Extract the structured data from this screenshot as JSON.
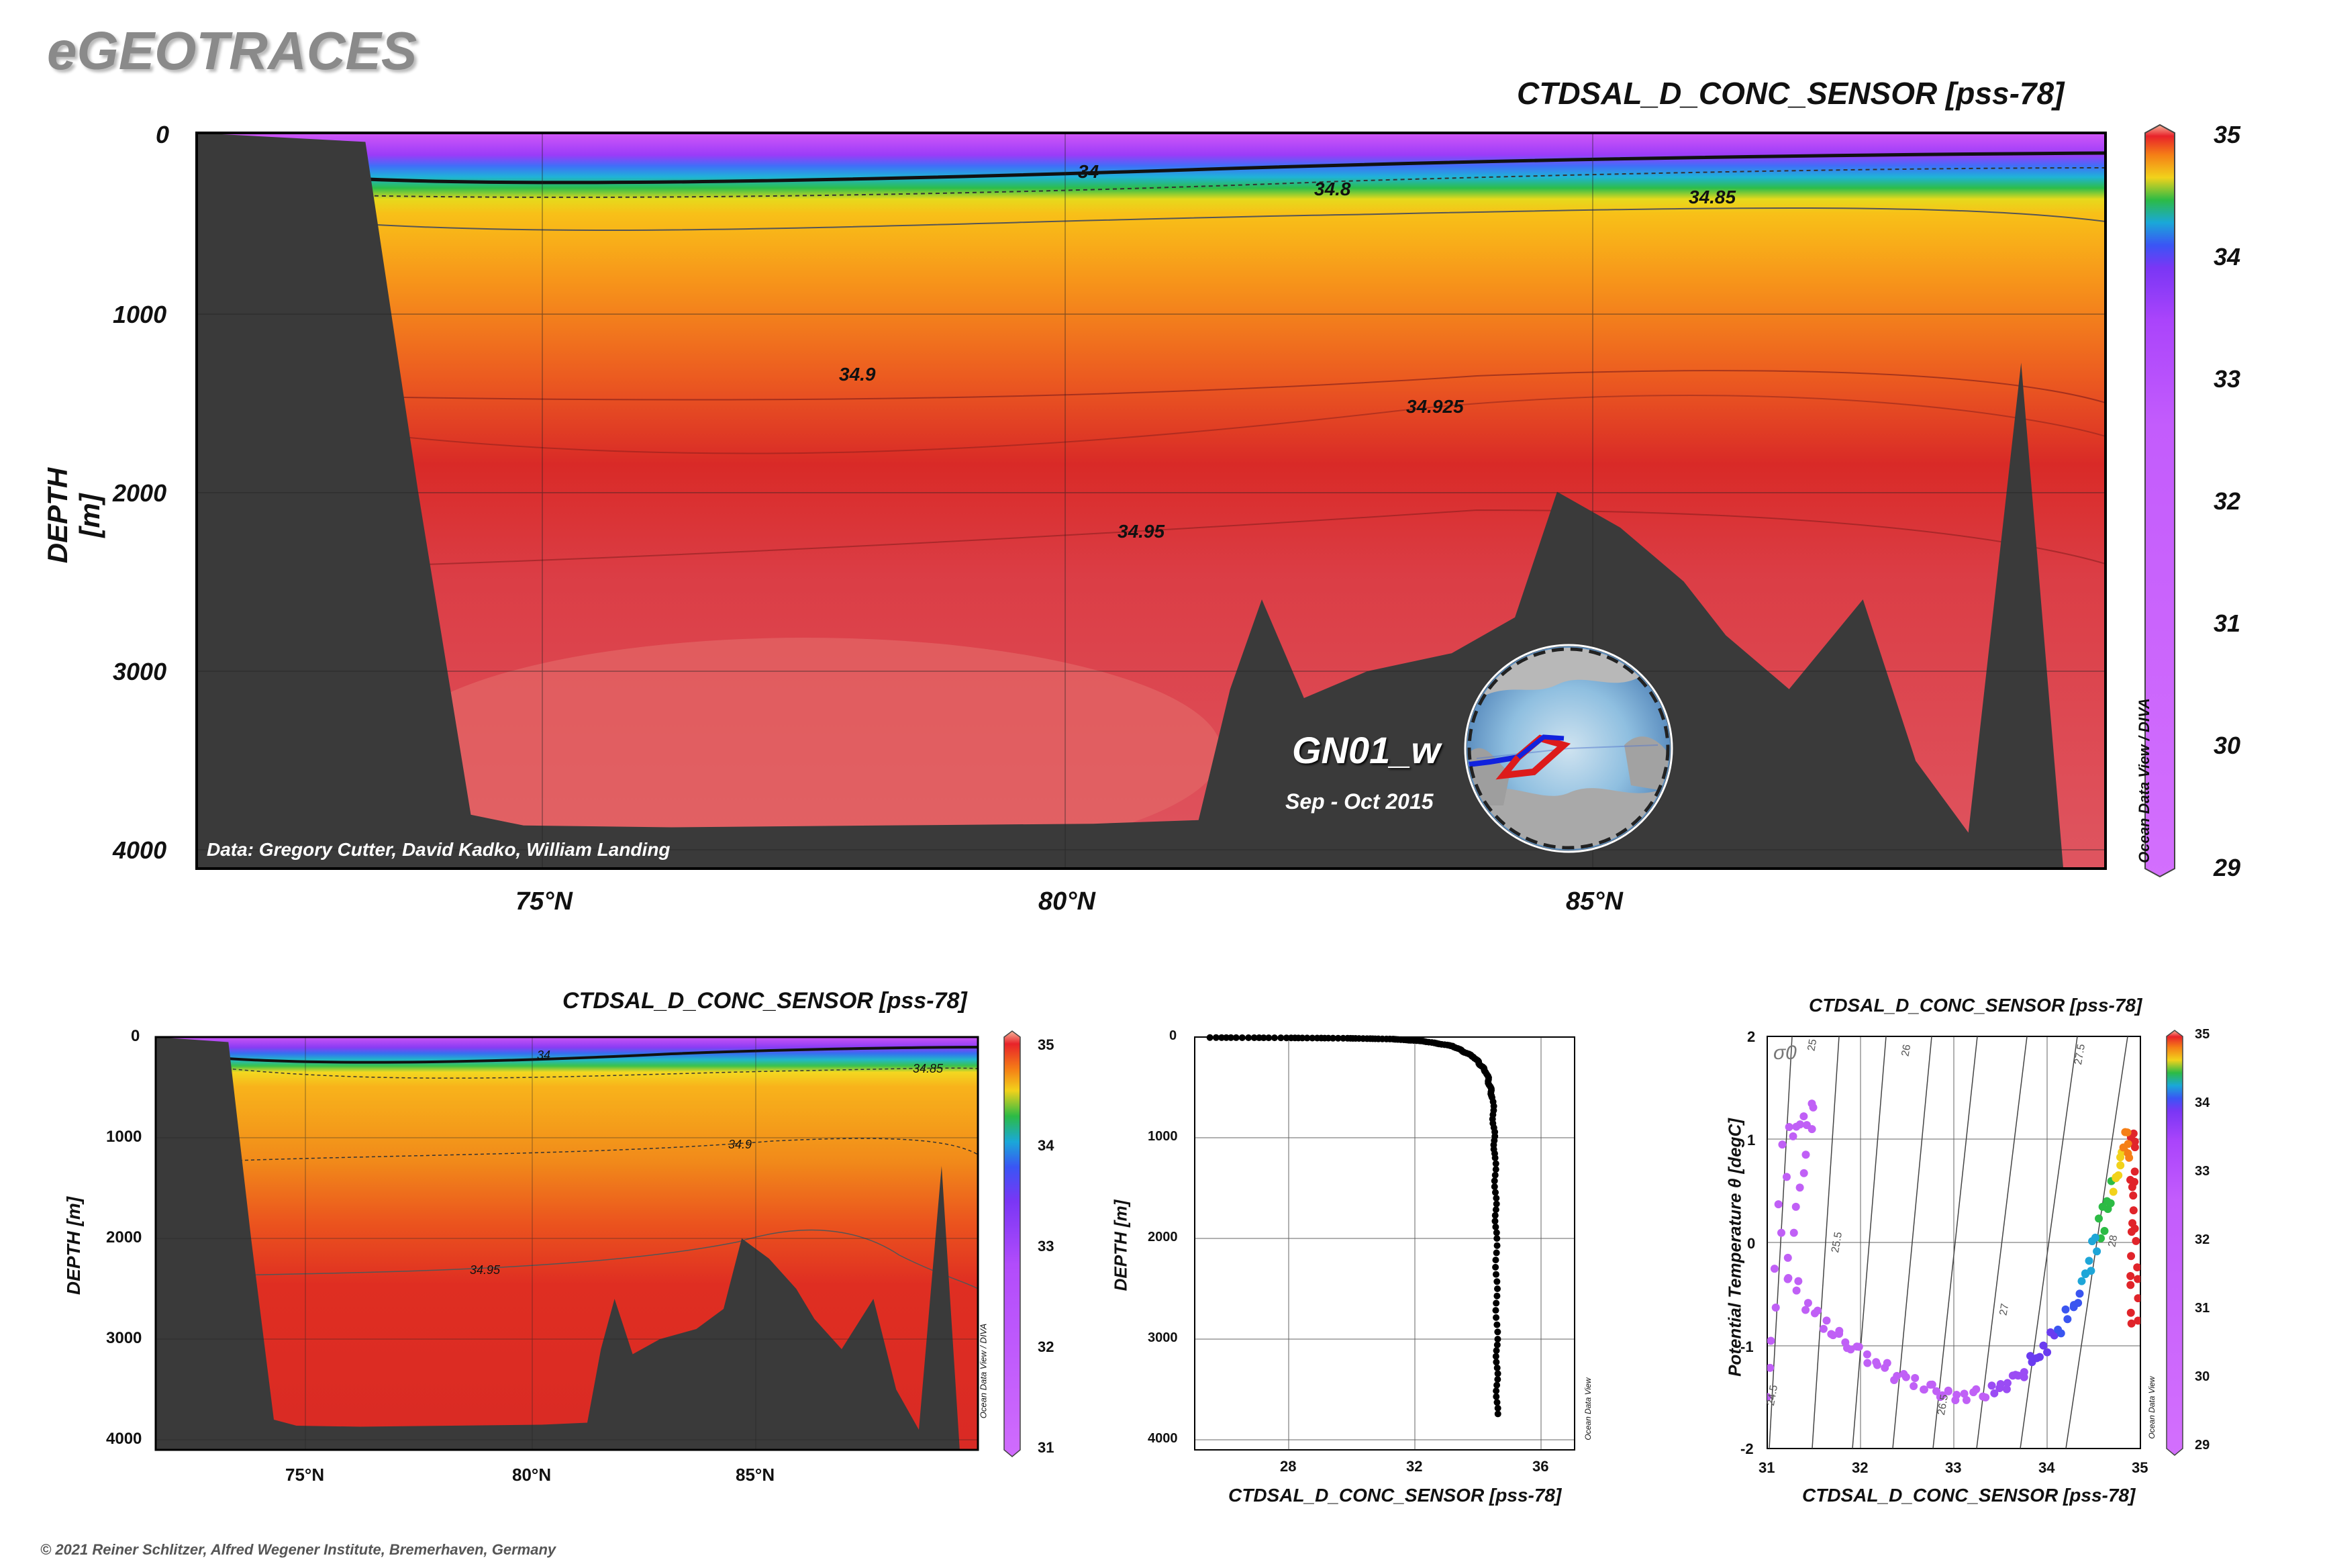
{
  "header": {
    "app_title": "eGEOTRACES"
  },
  "footer": {
    "copyright": "© 2021 Reiner Schlitzer, Alfred Wegener Institute, Bremerhaven, Germany"
  },
  "colors": {
    "terrain": "#3a3a3a",
    "purple_low": "#cc66ff",
    "violet": "#9933ff",
    "blue": "#3366ff",
    "cyan": "#1ab0d8",
    "green": "#22bb44",
    "yellow": "#f2d21b",
    "orange": "#f58a18",
    "red": "#d8242a",
    "salmon": "#e05a5a"
  },
  "main_section": {
    "title": "CTDSAL_D_CONC_SENSOR [pss-78]",
    "ylabel": "DEPTH [m]",
    "yticks": [
      "0",
      "1000",
      "2000",
      "3000",
      "4000"
    ],
    "xticks": [
      "75°N",
      "80°N",
      "85°N"
    ],
    "contour_labels": [
      "34",
      "34.8",
      "34.85",
      "34.9",
      "34.925",
      "34.95"
    ],
    "colorbar_ticks": [
      "35",
      "34",
      "33",
      "32",
      "31",
      "30",
      "29"
    ],
    "vertical_credit": "Ocean Data View / DIVA",
    "data_credit": "Data: Gregory Cutter, David Kadko, William Landing",
    "cruise_name": "GN01_w",
    "cruise_dates": "Sep - Oct 2015",
    "inset_credit": "Ocean Data View"
  },
  "small_section": {
    "title": "CTDSAL_D_CONC_SENSOR [pss-78]",
    "ylabel": "DEPTH [m]",
    "yticks": [
      "0",
      "1000",
      "2000",
      "3000",
      "4000"
    ],
    "xticks": [
      "75°N",
      "80°N",
      "85°N"
    ],
    "contour_labels": [
      "34",
      "34.85",
      "34.9",
      "34.95"
    ],
    "colorbar_ticks": [
      "35",
      "34",
      "33",
      "32",
      "31"
    ],
    "vertical_credit": "Ocean Data View / DIVA"
  },
  "profile_plot": {
    "xlabel": "CTDSAL_D_CONC_SENSOR [pss-78]",
    "ylabel": "DEPTH [m]",
    "yticks": [
      "0",
      "1000",
      "2000",
      "3000",
      "4000"
    ],
    "xticks": [
      "28",
      "32",
      "36"
    ],
    "vertical_credit": "Ocean Data View"
  },
  "ts_plot": {
    "title": "CTDSAL_D_CONC_SENSOR [pss-78]",
    "xlabel": "CTDSAL_D_CONC_SENSOR [pss-78]",
    "ylabel": "Potential Temperature θ [degC]",
    "xticks": [
      "31",
      "32",
      "33",
      "34",
      "35"
    ],
    "yticks": [
      "2",
      "1",
      "0",
      "-1",
      "-2"
    ],
    "sigma_label": "σ0",
    "isopycnal_labels": [
      "24.5",
      "25",
      "25.5",
      "26",
      "26.5",
      "27",
      "27.5",
      "28"
    ],
    "colorbar_ticks": [
      "35",
      "34",
      "33",
      "32",
      "31",
      "30",
      "29"
    ],
    "vertical_credit": "Ocean Data View"
  },
  "chart_data": [
    {
      "type": "heatmap",
      "title": "CTDSAL_D_CONC_SENSOR [pss-78]",
      "ylabel": "DEPTH [m]",
      "x_range_latN": [
        71.5,
        89.6
      ],
      "y_range_depth_m": [
        0,
        4100
      ],
      "y_reversed": true,
      "colorbar_range": [
        29,
        35
      ],
      "salinity_layers": [
        {
          "depth_m": 0,
          "value": 29.5
        },
        {
          "depth_m": 150,
          "value": 33.5
        },
        {
          "depth_m": 250,
          "value": 34.4
        },
        {
          "depth_m": 500,
          "value": 34.85
        },
        {
          "depth_m": 1500,
          "value": 34.92
        },
        {
          "depth_m": 2500,
          "value": 34.95
        }
      ],
      "contours": [
        {
          "value": "34",
          "depth_m_approx": 250
        },
        {
          "value": "34.8",
          "depth_m_approx": 300
        },
        {
          "value": "34.85",
          "depth_m_approx": 400
        },
        {
          "value": "34.9",
          "depth_m_approx": 1300
        },
        {
          "value": "34.925",
          "depth_m_approx": 1700
        },
        {
          "value": "34.95",
          "depth_m_approx": 2300
        }
      ],
      "bathymetry": [
        {
          "lat": 71.5,
          "depth": 0
        },
        {
          "lat": 73.1,
          "depth": 50
        },
        {
          "lat": 73.6,
          "depth": 2000
        },
        {
          "lat": 74.1,
          "depth": 3800
        },
        {
          "lat": 74.6,
          "depth": 3860
        },
        {
          "lat": 76,
          "depth": 3870
        },
        {
          "lat": 78,
          "depth": 3860
        },
        {
          "lat": 80,
          "depth": 3850
        },
        {
          "lat": 81,
          "depth": 3830
        },
        {
          "lat": 81.3,
          "depth": 3100
        },
        {
          "lat": 81.6,
          "depth": 2600
        },
        {
          "lat": 82,
          "depth": 3150
        },
        {
          "lat": 82.6,
          "depth": 3000
        },
        {
          "lat": 83.4,
          "depth": 2900
        },
        {
          "lat": 84,
          "depth": 2700
        },
        {
          "lat": 84.4,
          "depth": 2000
        },
        {
          "lat": 85,
          "depth": 2200
        },
        {
          "lat": 85.6,
          "depth": 2500
        },
        {
          "lat": 86,
          "depth": 2800
        },
        {
          "lat": 86.6,
          "depth": 3100
        },
        {
          "lat": 87.3,
          "depth": 2600
        },
        {
          "lat": 87.8,
          "depth": 3500
        },
        {
          "lat": 88.3,
          "depth": 3900
        },
        {
          "lat": 88.8,
          "depth": 1280
        },
        {
          "lat": 89.2,
          "depth": 4100
        },
        {
          "lat": 89.6,
          "depth": 4100
        }
      ]
    },
    {
      "type": "heatmap",
      "title": "CTDSAL_D_CONC_SENSOR [pss-78]",
      "ylabel": "DEPTH [m]",
      "x_range_latN": [
        71.5,
        89.6
      ],
      "y_range_depth_m": [
        0,
        4100
      ],
      "y_reversed": true,
      "colorbar_range": [
        31,
        35
      ]
    },
    {
      "type": "scatter",
      "xlabel": "CTDSAL_D_CONC_SENSOR [pss-78]",
      "ylabel": "DEPTH [m]",
      "xlim": [
        25,
        37.5
      ],
      "ylim": [
        0,
        4100
      ],
      "y_reversed": true,
      "profile": [
        {
          "x": 25.5,
          "y": 5
        },
        {
          "x": 28,
          "y": 8
        },
        {
          "x": 30,
          "y": 12
        },
        {
          "x": 31.5,
          "y": 20
        },
        {
          "x": 32.5,
          "y": 40
        },
        {
          "x": 33.5,
          "y": 90
        },
        {
          "x": 34.2,
          "y": 200
        },
        {
          "x": 34.6,
          "y": 350
        },
        {
          "x": 34.8,
          "y": 600
        },
        {
          "x": 34.88,
          "y": 1200
        },
        {
          "x": 34.92,
          "y": 2000
        },
        {
          "x": 34.94,
          "y": 3000
        },
        {
          "x": 34.95,
          "y": 3800
        }
      ]
    },
    {
      "type": "scatter",
      "xlabel": "CTDSAL_D_CONC_SENSOR [pss-78]",
      "ylabel": "Potential Temperature θ [degC]",
      "xlim": [
        31,
        35
      ],
      "ylim": [
        -2,
        2
      ],
      "colorbar_range": [
        29,
        35
      ],
      "profile": [
        {
          "x": 31.0,
          "y": -1.55
        },
        {
          "x": 31.2,
          "y": 1.0
        },
        {
          "x": 31.5,
          "y": 1.3
        },
        {
          "x": 31.2,
          "y": -0.3
        },
        {
          "x": 31.6,
          "y": -0.8
        },
        {
          "x": 31.9,
          "y": -1.0
        },
        {
          "x": 32.3,
          "y": -1.25
        },
        {
          "x": 32.7,
          "y": -1.4
        },
        {
          "x": 33.0,
          "y": -1.5
        },
        {
          "x": 33.4,
          "y": -1.45
        },
        {
          "x": 33.7,
          "y": -1.3
        },
        {
          "x": 34.0,
          "y": -1.0
        },
        {
          "x": 34.3,
          "y": -0.6
        },
        {
          "x": 34.5,
          "y": -0.1
        },
        {
          "x": 34.65,
          "y": 0.4
        },
        {
          "x": 34.8,
          "y": 0.8
        },
        {
          "x": 34.9,
          "y": 1.1
        },
        {
          "x": 34.92,
          "y": 0.5
        },
        {
          "x": 34.93,
          "y": -0.2
        },
        {
          "x": 34.94,
          "y": -0.9
        }
      ]
    }
  ]
}
